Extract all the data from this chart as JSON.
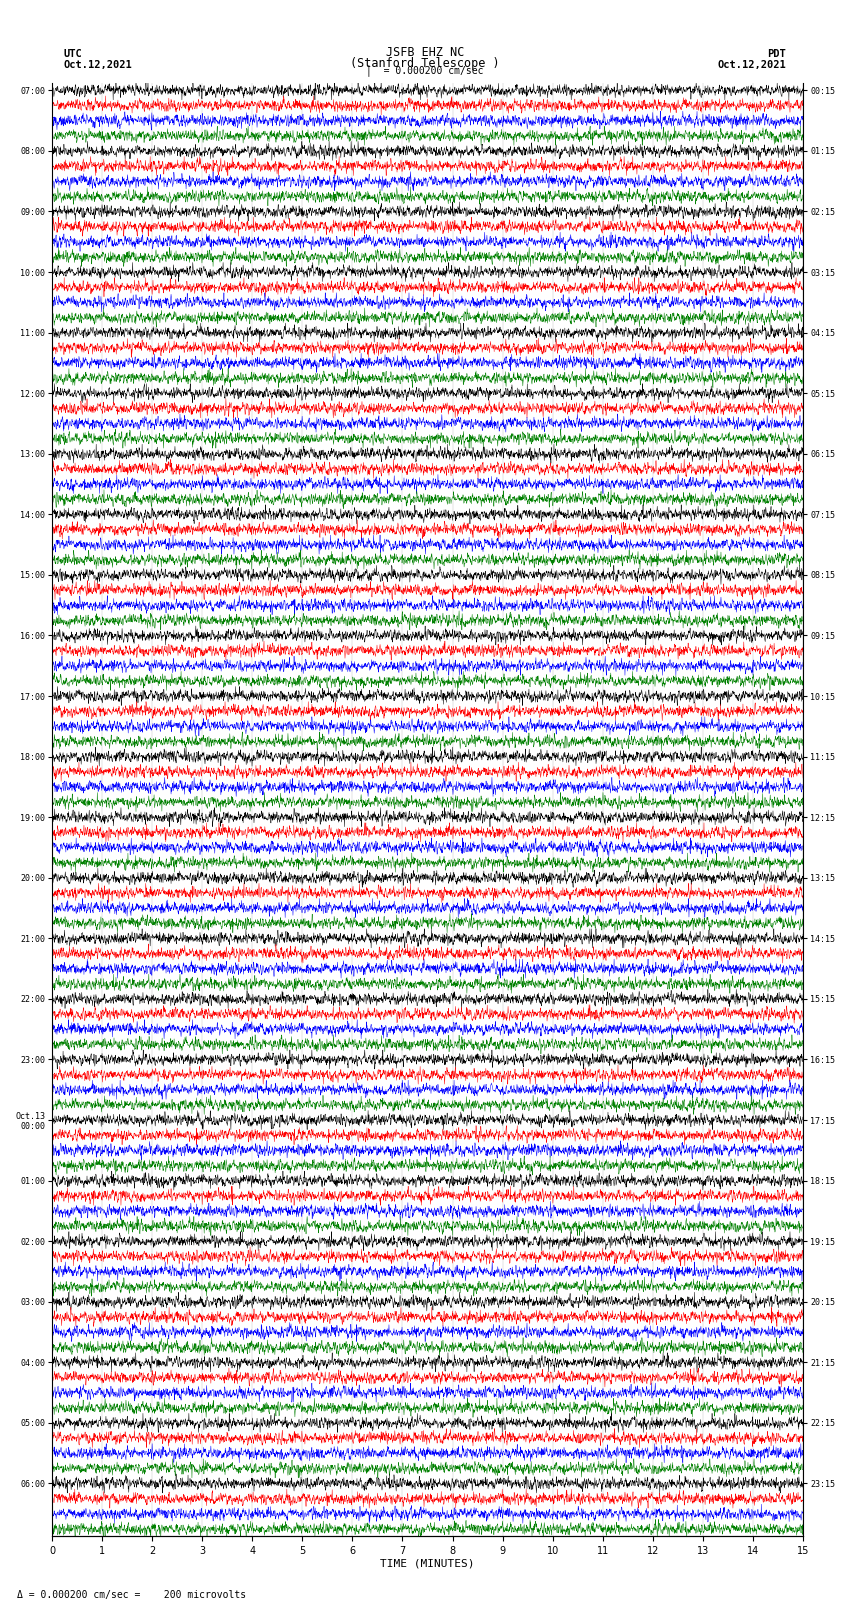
{
  "title_line1": "JSFB EHZ NC",
  "title_line2": "(Stanford Telescope )",
  "scale_label": "= 0.000200 cm/sec",
  "left_header_line1": "UTC",
  "left_header_line2": "Oct.12,2021",
  "right_header_line1": "PDT",
  "right_header_line2": "Oct.12,2021",
  "bottom_label": "TIME (MINUTES)",
  "bottom_note": "= 0.000200 cm/sec =    200 microvolts",
  "left_times": [
    "07:00",
    "08:00",
    "09:00",
    "10:00",
    "11:00",
    "12:00",
    "13:00",
    "14:00",
    "15:00",
    "16:00",
    "17:00",
    "18:00",
    "19:00",
    "20:00",
    "21:00",
    "22:00",
    "23:00",
    "Oct.13\n00:00",
    "01:00",
    "02:00",
    "03:00",
    "04:00",
    "05:00",
    "06:00"
  ],
  "right_times": [
    "00:15",
    "01:15",
    "02:15",
    "03:15",
    "04:15",
    "05:15",
    "06:15",
    "07:15",
    "08:15",
    "09:15",
    "10:15",
    "11:15",
    "12:15",
    "13:15",
    "14:15",
    "15:15",
    "16:15",
    "17:15",
    "18:15",
    "19:15",
    "20:15",
    "21:15",
    "22:15",
    "23:15"
  ],
  "trace_colors": [
    "#000000",
    "#ff0000",
    "#0000ff",
    "#008000"
  ],
  "n_rows": 24,
  "traces_per_row": 4,
  "xmin": 0,
  "xmax": 15,
  "bg_color": "#ffffff",
  "noise_seed": 42,
  "n_points": 2700,
  "amplitude": 0.42
}
